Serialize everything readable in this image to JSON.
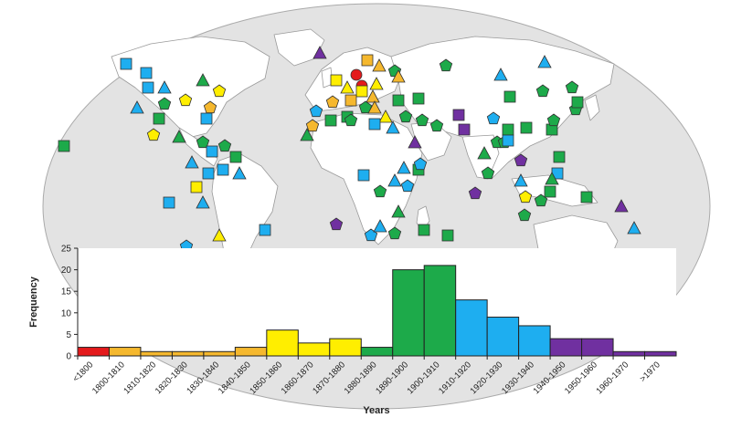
{
  "chart_data": {
    "type": "bar",
    "xlabel": "Years",
    "ylabel": "Frequency",
    "ylim": [
      0,
      25
    ],
    "yticks": [
      0,
      5,
      10,
      15,
      20,
      25
    ],
    "categories": [
      "<1800",
      "1800-1810",
      "1810-1820",
      "1820-1830",
      "1830-1840",
      "1840-1850",
      "1850-1860",
      "1860-1870",
      "1870-1880",
      "1880-1890",
      "1890-1900",
      "1900-1910",
      "1910-1920",
      "1920-1930",
      "1930-1940",
      "1940-1950",
      "1950-1960",
      "1960-1970",
      ">1970"
    ],
    "values": [
      2,
      2,
      1,
      1,
      1,
      2,
      6,
      3,
      4,
      2,
      20,
      21,
      13,
      9,
      7,
      4,
      4,
      1,
      1
    ],
    "bar_colors": [
      "#e41a1c",
      "#f5b82e",
      "#f5b82e",
      "#f5b82e",
      "#f5b82e",
      "#f5b82e",
      "#ffee00",
      "#ffee00",
      "#ffee00",
      "#1daa4a",
      "#1daa4a",
      "#1daa4a",
      "#1eaef0",
      "#1eaef0",
      "#1eaef0",
      "#7030a0",
      "#7030a0",
      "#7030a0",
      "#7030a0"
    ],
    "background_map": "world map with marker symbols colored by period of introduction",
    "marker_colors": {
      "red": "#e41a1c",
      "orange": "#f5b82e",
      "yellow": "#ffee00",
      "green": "#1daa4a",
      "blue": "#1eaef0",
      "purple": "#7030a0"
    },
    "marker_shapes": [
      "circle",
      "square",
      "triangle",
      "pentagon"
    ],
    "grid": false
  }
}
